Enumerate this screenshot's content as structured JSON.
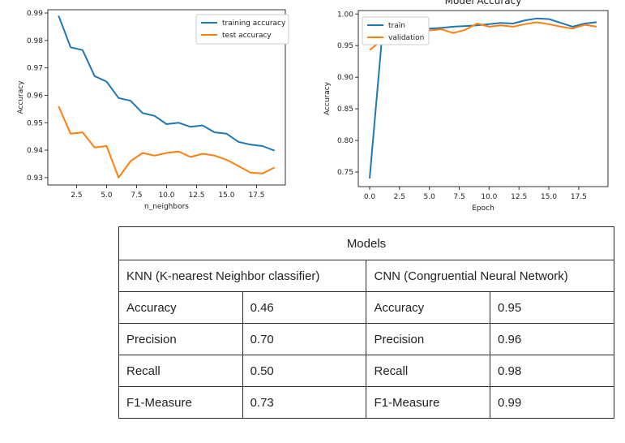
{
  "chart_data": [
    {
      "type": "line",
      "title": "",
      "xlabel": "n_neighbors",
      "ylabel": "Accuracy",
      "x": [
        1,
        2,
        3,
        4,
        5,
        6,
        7,
        8,
        9,
        10,
        11,
        12,
        13,
        14,
        15,
        16,
        17,
        18,
        19
      ],
      "xlim": [
        0.1,
        19.9
      ],
      "ylim": [
        0.9273,
        0.9912
      ],
      "xticks": [
        2.5,
        5.0,
        7.5,
        10.0,
        12.5,
        15.0,
        17.5
      ],
      "xtick_labels": [
        "2.5",
        "5.0",
        "7.5",
        "10.0",
        "12.5",
        "15.0",
        "17.5"
      ],
      "yticks": [
        0.93,
        0.94,
        0.95,
        0.96,
        0.97,
        0.98,
        0.99
      ],
      "ytick_labels": [
        "0.93",
        "0.94",
        "0.95",
        "0.96",
        "0.97",
        "0.98",
        "0.99"
      ],
      "legend_position": "top-right",
      "series": [
        {
          "name": "training accuracy",
          "color": "#1f77b4",
          "values": [
            0.989,
            0.9775,
            0.9765,
            0.967,
            0.965,
            0.959,
            0.958,
            0.9535,
            0.9525,
            0.9495,
            0.95,
            0.9485,
            0.949,
            0.9465,
            0.946,
            0.943,
            0.942,
            0.9415,
            0.9398
          ]
        },
        {
          "name": "test accuracy",
          "color": "#ff7f0e",
          "values": [
            0.956,
            0.946,
            0.9465,
            0.941,
            0.9415,
            0.93,
            0.936,
            0.939,
            0.938,
            0.939,
            0.9395,
            0.9375,
            0.9387,
            0.938,
            0.9365,
            0.9342,
            0.9318,
            0.9315,
            0.9337
          ]
        }
      ]
    },
    {
      "type": "line",
      "title": "Model Accuracy",
      "xlabel": "Epoch",
      "ylabel": "Accuracy",
      "x": [
        0,
        1,
        2,
        3,
        4,
        5,
        6,
        7,
        8,
        9,
        10,
        11,
        12,
        13,
        14,
        15,
        16,
        17,
        18,
        19
      ],
      "xlim": [
        -0.95,
        19.95
      ],
      "ylim": [
        0.727,
        1.0055
      ],
      "xticks": [
        0.0,
        2.5,
        5.0,
        7.5,
        10.0,
        12.5,
        15.0,
        17.5
      ],
      "xtick_labels": [
        "0.0",
        "2.5",
        "5.0",
        "7.5",
        "10.0",
        "12.5",
        "15.0",
        "17.5"
      ],
      "yticks": [
        0.75,
        0.8,
        0.85,
        0.9,
        0.95,
        1.0
      ],
      "ytick_labels": [
        "0.75",
        "0.80",
        "0.85",
        "0.90",
        "0.95",
        "1.00"
      ],
      "legend_position": "top-left",
      "series": [
        {
          "name": "train",
          "color": "#1f77b4",
          "values": [
            0.74,
            0.955,
            0.965,
            0.972,
            0.975,
            0.977,
            0.978,
            0.98,
            0.981,
            0.982,
            0.984,
            0.986,
            0.985,
            0.99,
            0.993,
            0.992,
            0.986,
            0.98,
            0.985,
            0.987
          ]
        },
        {
          "name": "validation",
          "color": "#ff7f0e",
          "values": [
            0.943,
            0.958,
            0.968,
            0.97,
            0.972,
            0.974,
            0.976,
            0.97,
            0.975,
            0.985,
            0.98,
            0.982,
            0.98,
            0.984,
            0.987,
            0.984,
            0.98,
            0.977,
            0.983,
            0.98
          ]
        }
      ]
    }
  ],
  "table": {
    "title": "Models",
    "knn_header": "KNN (K-nearest Neighbor classifier)",
    "cnn_header": "CNN (Congruential Neural Network)",
    "rows": [
      {
        "knn_metric": "Accuracy",
        "knn_value": "0.46",
        "cnn_metric": "Accuracy",
        "cnn_value": "0.95"
      },
      {
        "knn_metric": "Precision",
        "knn_value": "0.70",
        "cnn_metric": "Precision",
        "cnn_value": "0.96"
      },
      {
        "knn_metric": "Recall",
        "knn_value": "0.50",
        "cnn_metric": "Recall",
        "cnn_value": "0.98"
      },
      {
        "knn_metric": "F1-Measure",
        "knn_value": "0.73",
        "cnn_metric": "F1-Measure",
        "cnn_value": "0.99"
      }
    ]
  }
}
